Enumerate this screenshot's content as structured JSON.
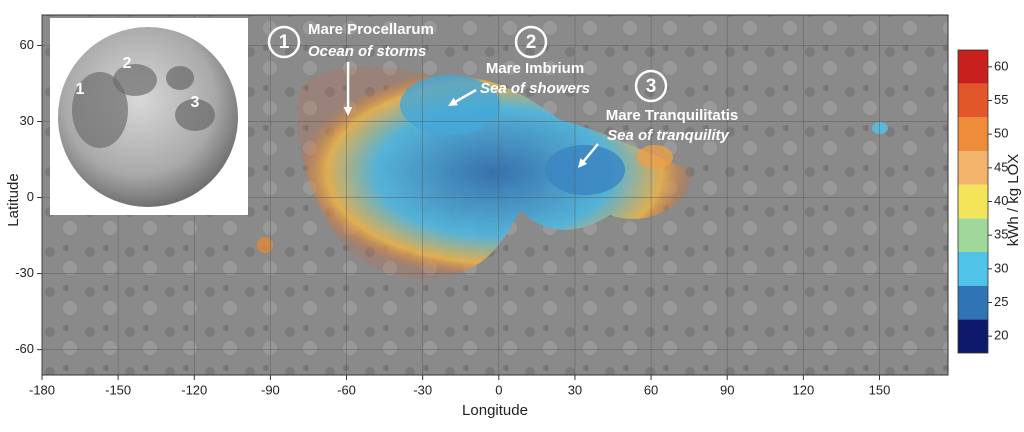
{
  "map": {
    "xlabel": "Longitude",
    "ylabel": "Latitude",
    "xlim": [
      -180,
      177
    ],
    "ylim": [
      -70,
      72
    ],
    "xticks": [
      -180,
      -150,
      -120,
      -90,
      -60,
      -30,
      0,
      30,
      60,
      90,
      120,
      150
    ],
    "yticks": [
      -60,
      -30,
      0,
      30,
      60
    ],
    "annotations": [
      {
        "number": "1",
        "name": "Mare Procellarum",
        "subtitle": "Ocean of storms"
      },
      {
        "number": "2",
        "name": "Mare Imbrium",
        "subtitle": "Sea of showers"
      },
      {
        "number": "3",
        "name": "Mare Tranquilitatis",
        "subtitle": "Sea of tranquility"
      }
    ],
    "inset_labels": [
      "1",
      "2",
      "3"
    ],
    "colorbar": {
      "label": "kWh / kg LOX",
      "lim": [
        17.5,
        62.5
      ],
      "ticks": [
        20,
        25,
        30,
        35,
        40,
        45,
        50,
        55,
        60
      ],
      "colors": [
        "#0d1a6b",
        "#2f74b5",
        "#4fc3e8",
        "#9fd89a",
        "#f4e45a",
        "#f2b36a",
        "#ee8c3a",
        "#e2572a",
        "#c8201c"
      ]
    }
  }
}
